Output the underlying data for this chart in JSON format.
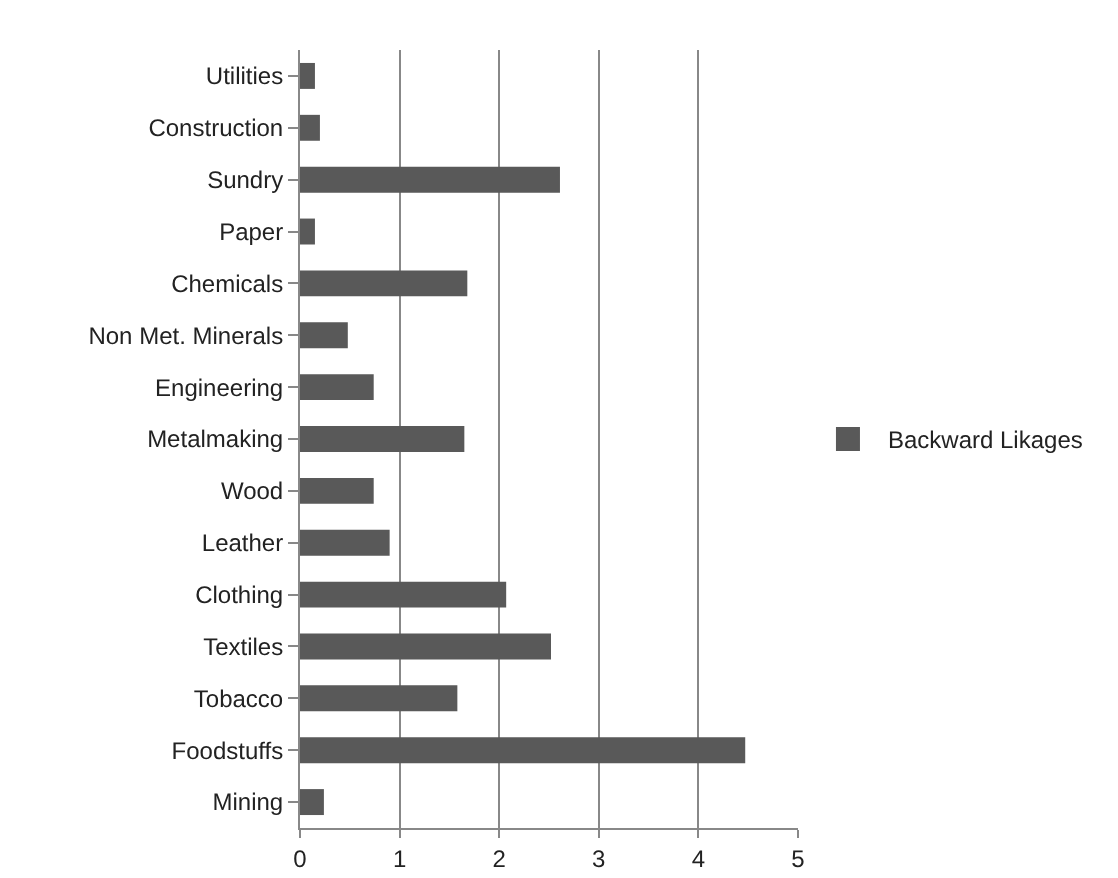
{
  "chart_data": {
    "type": "bar",
    "orientation": "horizontal",
    "categories": [
      "Utilities",
      "Construction",
      "Sundry",
      "Paper",
      "Chemicals",
      "Non Met. Minerals",
      "Engineering",
      "Metalmaking",
      "Wood",
      "Leather",
      "Clothing",
      "Textiles",
      "Tobacco",
      "Foodstuffs",
      "Mining"
    ],
    "series": [
      {
        "name": "Backward Likages",
        "color": "#595959",
        "values": [
          0.15,
          0.2,
          2.61,
          0.15,
          1.68,
          0.48,
          0.74,
          1.65,
          0.74,
          0.9,
          2.07,
          2.52,
          1.58,
          4.47,
          0.24
        ]
      }
    ],
    "xlim": [
      0,
      5
    ],
    "xticks": [
      0,
      1,
      2,
      3,
      4,
      5
    ],
    "grid": "x",
    "legend": "right"
  }
}
